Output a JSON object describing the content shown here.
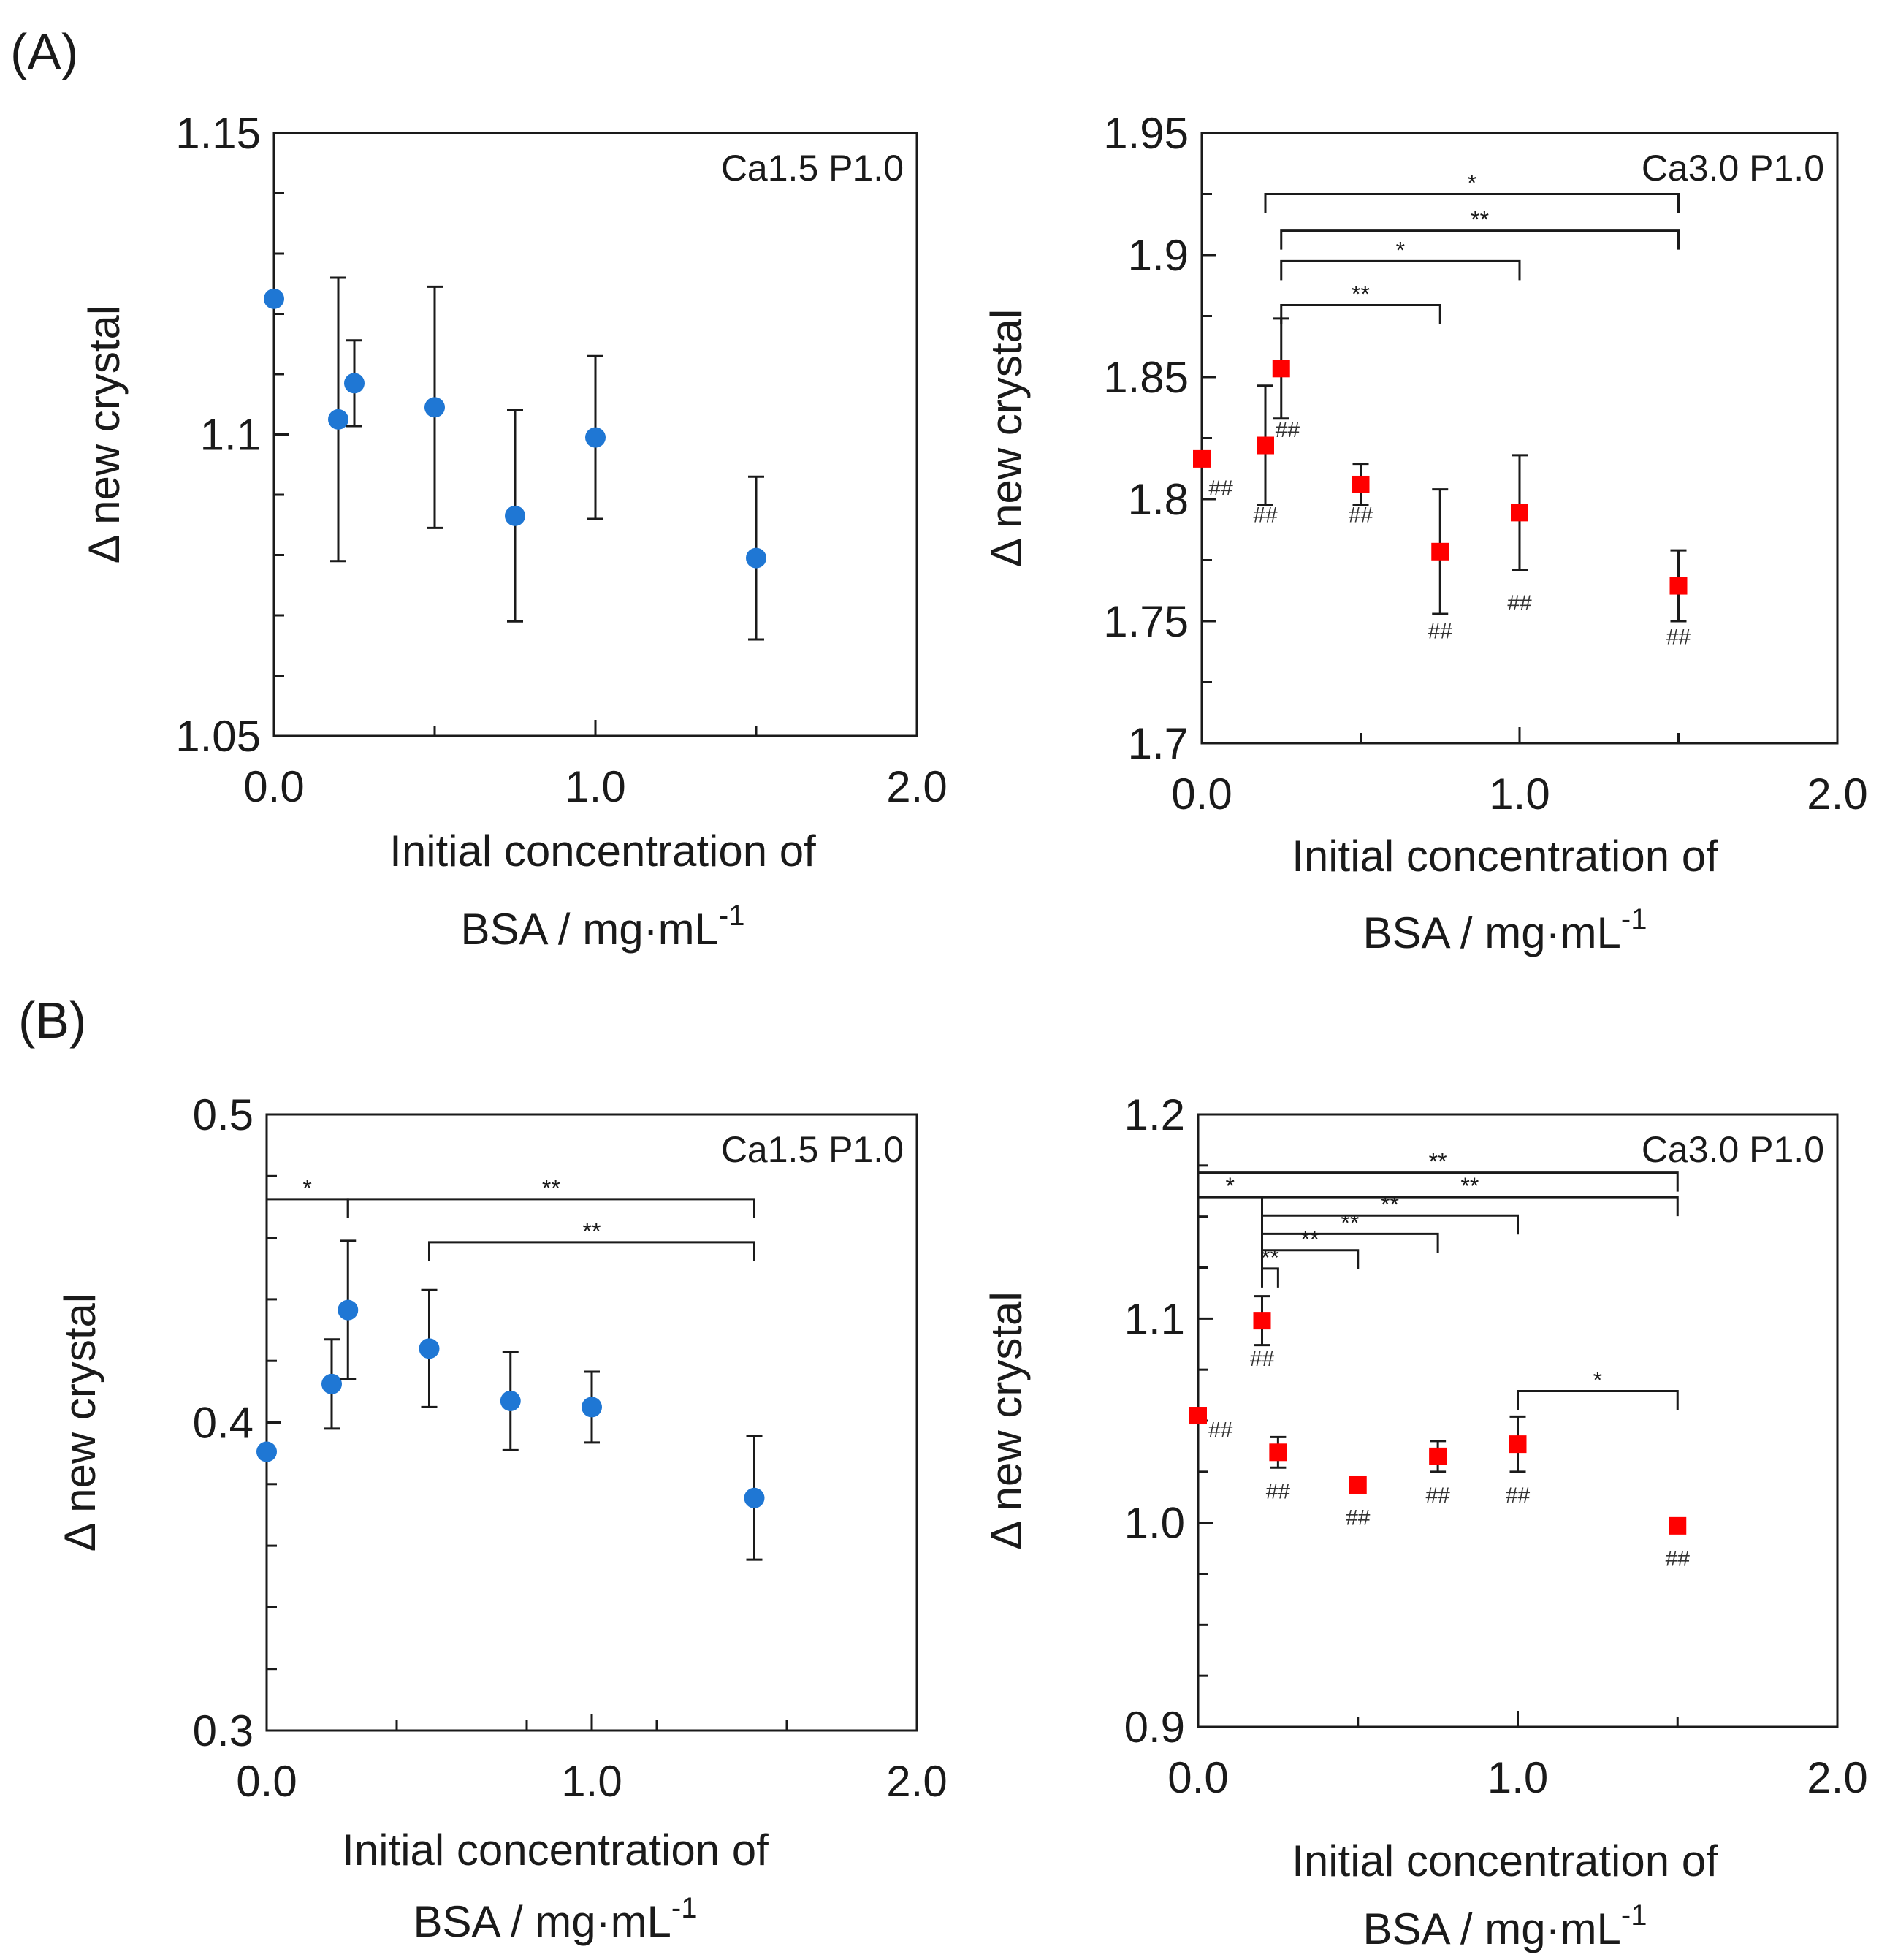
{
  "panel_labels": [
    "(A)",
    "(B)"
  ],
  "chart_data": [
    {
      "id": "A-left",
      "type": "scatter",
      "panel": "(A)",
      "condition": "Ca1.5 P1.0",
      "xlabel_line1": "Initial concentration of",
      "xlabel_line2": "BSA  / mg·mL",
      "xlabel_sup": "-1",
      "ylabel": "Δ new crystal",
      "xlim": [
        0,
        2
      ],
      "xticks": [
        0,
        1,
        2
      ],
      "xtick_labels": [
        "0.0",
        "1.0",
        "2.0"
      ],
      "xminor": [
        0.5,
        1.5
      ],
      "ylim": [
        1.05,
        1.15
      ],
      "yticks": [
        1.05,
        1.1,
        1.15
      ],
      "ytick_labels": [
        "1.05",
        "1.1",
        "1.15"
      ],
      "yminor": [
        1.06,
        1.07,
        1.08,
        1.09,
        1.11,
        1.12,
        1.13,
        1.14
      ],
      "marker": "circle",
      "color": "#1f77d4",
      "points": [
        {
          "x": 0.0,
          "y": 1.1225
        },
        {
          "x": 0.2,
          "y": 1.1025,
          "err": 0.0235
        },
        {
          "x": 0.25,
          "y": 1.1085,
          "err": 0.0071
        },
        {
          "x": 0.5,
          "y": 1.1045,
          "err": 0.02
        },
        {
          "x": 0.75,
          "y": 1.0865,
          "err": 0.0175
        },
        {
          "x": 1.0,
          "y": 1.0995,
          "err": 0.0135
        },
        {
          "x": 1.5,
          "y": 1.0795,
          "err": 0.0135
        }
      ],
      "brackets": [],
      "hashes": []
    },
    {
      "id": "A-right",
      "type": "scatter",
      "panel": "(A)",
      "condition": "Ca3.0 P1.0",
      "xlabel_line1": "Initial concentration of",
      "xlabel_line2": "BSA  / mg·mL",
      "xlabel_sup": "-1",
      "ylabel": "Δ new crystal",
      "xlim": [
        0,
        2
      ],
      "xticks": [
        0,
        1,
        2
      ],
      "xtick_labels": [
        "0.0",
        "1.0",
        "2.0"
      ],
      "xminor": [
        0.5,
        1.5
      ],
      "ylim": [
        1.7,
        1.95
      ],
      "yticks": [
        1.7,
        1.75,
        1.8,
        1.85,
        1.9,
        1.95
      ],
      "ytick_labels": [
        "1.7",
        "1.75",
        "1.8",
        "1.85",
        "1.9",
        "1.95"
      ],
      "yminor": [
        1.725,
        1.775,
        1.825,
        1.875,
        1.925
      ],
      "marker": "square",
      "color": "#ff0000",
      "points": [
        {
          "x": 0.0,
          "y": 1.8165
        },
        {
          "x": 0.2,
          "y": 1.822,
          "err": 0.0245
        },
        {
          "x": 0.25,
          "y": 1.8535,
          "err": 0.0205
        },
        {
          "x": 0.5,
          "y": 1.806,
          "err": 0.0085
        },
        {
          "x": 0.75,
          "y": 1.7785,
          "err": 0.0255
        },
        {
          "x": 1.0,
          "y": 1.7945,
          "err": 0.0235
        },
        {
          "x": 1.5,
          "y": 1.7645,
          "err": 0.0145
        }
      ],
      "brackets": [
        {
          "x1": 0.2,
          "x2": 1.5,
          "y": 1.925,
          "label": "*"
        },
        {
          "x1": 0.25,
          "x2": 1.5,
          "y": 1.91,
          "label": "**"
        },
        {
          "x1": 0.25,
          "x2": 1.0,
          "y": 1.8975,
          "label": "*"
        },
        {
          "x1": 0.25,
          "x2": 0.75,
          "y": 1.8795,
          "label": "**"
        }
      ],
      "hashes": [
        {
          "x": 0.06,
          "y": 1.8045,
          "label": "##"
        },
        {
          "x": 0.2,
          "y": 1.7935,
          "label": "##"
        },
        {
          "x": 0.27,
          "y": 1.8285,
          "label": "##"
        },
        {
          "x": 0.5,
          "y": 1.7935,
          "label": "##"
        },
        {
          "x": 0.75,
          "y": 1.746,
          "label": "##"
        },
        {
          "x": 1.0,
          "y": 1.7575,
          "label": "##"
        },
        {
          "x": 1.5,
          "y": 1.7435,
          "label": "##"
        }
      ]
    },
    {
      "id": "B-left",
      "type": "scatter",
      "panel": "(B)",
      "condition": "Ca1.5 P1.0",
      "xlabel_line1": "Initial concentration of",
      "xlabel_line2": "BSA  / mg·mL",
      "xlabel_sup": "-1",
      "ylabel": "Δ new crystal",
      "xlim": [
        0,
        2
      ],
      "xticks": [
        0,
        1,
        2
      ],
      "xtick_labels": [
        "0.0",
        "1.0",
        "2.0"
      ],
      "xminor": [
        0.4,
        0.8,
        1.2,
        1.6
      ],
      "ylim": [
        0.3,
        0.5
      ],
      "yticks": [
        0.3,
        0.4,
        0.5
      ],
      "ytick_labels": [
        "0.3",
        "0.4",
        "0.5"
      ],
      "yminor": [
        0.32,
        0.34,
        0.36,
        0.38,
        0.42,
        0.44,
        0.46,
        0.48
      ],
      "marker": "circle",
      "color": "#1f77d4",
      "points": [
        {
          "x": 0.0,
          "y": 0.3905
        },
        {
          "x": 0.2,
          "y": 0.4125,
          "err": 0.0145
        },
        {
          "x": 0.25,
          "y": 0.4365,
          "err": 0.0225
        },
        {
          "x": 0.5,
          "y": 0.424,
          "err": 0.019
        },
        {
          "x": 0.75,
          "y": 0.407,
          "err": 0.016
        },
        {
          "x": 1.0,
          "y": 0.405,
          "err": 0.0115
        },
        {
          "x": 1.5,
          "y": 0.3755,
          "err": 0.02
        }
      ],
      "brackets": [
        {
          "x1": 0.0,
          "x2": 0.25,
          "y": 0.4725,
          "label": "*"
        },
        {
          "x1": 0.25,
          "x2": 1.5,
          "y": 0.4725,
          "label": "**"
        },
        {
          "x1": 0.5,
          "x2": 1.5,
          "y": 0.4585,
          "label": "**"
        }
      ],
      "hashes": []
    },
    {
      "id": "B-right",
      "type": "scatter",
      "panel": "(B)",
      "condition": "Ca3.0 P1.0",
      "xlabel_line1": "Initial concentration of",
      "xlabel_line2": "BSA  / mg·mL",
      "xlabel_sup": "-1",
      "ylabel": "Δ new crystal",
      "xlim": [
        0,
        2
      ],
      "xticks": [
        0,
        1,
        2
      ],
      "xtick_labels": [
        "0.0",
        "1.0",
        "2.0"
      ],
      "xminor": [
        0.5,
        1.5
      ],
      "ylim": [
        0.9,
        1.2
      ],
      "yticks": [
        0.9,
        1.0,
        1.1,
        1.2
      ],
      "ytick_labels": [
        "0.9",
        "1.0",
        "1.1",
        "1.2"
      ],
      "yminor": [
        0.925,
        0.95,
        0.975,
        1.025,
        1.05,
        1.075,
        1.125,
        1.15,
        1.175
      ],
      "marker": "square",
      "color": "#ff0000",
      "points": [
        {
          "x": 0.0,
          "y": 1.0525
        },
        {
          "x": 0.2,
          "y": 1.099,
          "err": 0.012
        },
        {
          "x": 0.25,
          "y": 1.0345,
          "err": 0.0075
        },
        {
          "x": 0.5,
          "y": 1.0185
        },
        {
          "x": 0.75,
          "y": 1.0325,
          "err": 0.0075
        },
        {
          "x": 1.0,
          "y": 1.0385,
          "err": 0.0135
        },
        {
          "x": 1.5,
          "y": 0.9985
        }
      ],
      "brackets": [
        {
          "x1": 0.0,
          "x2": 1.5,
          "y": 1.1715,
          "label": "**"
        },
        {
          "x1": 0.0,
          "x2": 0.2,
          "y": 1.1595,
          "label": "*"
        },
        {
          "x1": 0.2,
          "x2": 1.5,
          "y": 1.1595,
          "label": "**"
        },
        {
          "x1": 0.2,
          "x2": 1.0,
          "y": 1.1505,
          "label": "**"
        },
        {
          "x1": 0.2,
          "x2": 0.75,
          "y": 1.1415,
          "label": "**"
        },
        {
          "x1": 0.2,
          "x2": 0.5,
          "y": 1.1335,
          "label": "**"
        },
        {
          "x1": 0.2,
          "x2": 0.25,
          "y": 1.1245,
          "label": "**"
        },
        {
          "x1": 1.0,
          "x2": 1.5,
          "y": 1.0645,
          "label": "*"
        }
      ],
      "hashes": [
        {
          "x": 0.07,
          "y": 1.0455,
          "label": "##"
        },
        {
          "x": 0.2,
          "y": 1.0805,
          "label": "##"
        },
        {
          "x": 0.25,
          "y": 1.0155,
          "label": "##"
        },
        {
          "x": 0.5,
          "y": 1.0025,
          "label": "##"
        },
        {
          "x": 0.75,
          "y": 1.0135,
          "label": "##"
        },
        {
          "x": 1.0,
          "y": 1.0135,
          "label": "##"
        },
        {
          "x": 1.5,
          "y": 0.9825,
          "label": "##"
        }
      ]
    }
  ]
}
